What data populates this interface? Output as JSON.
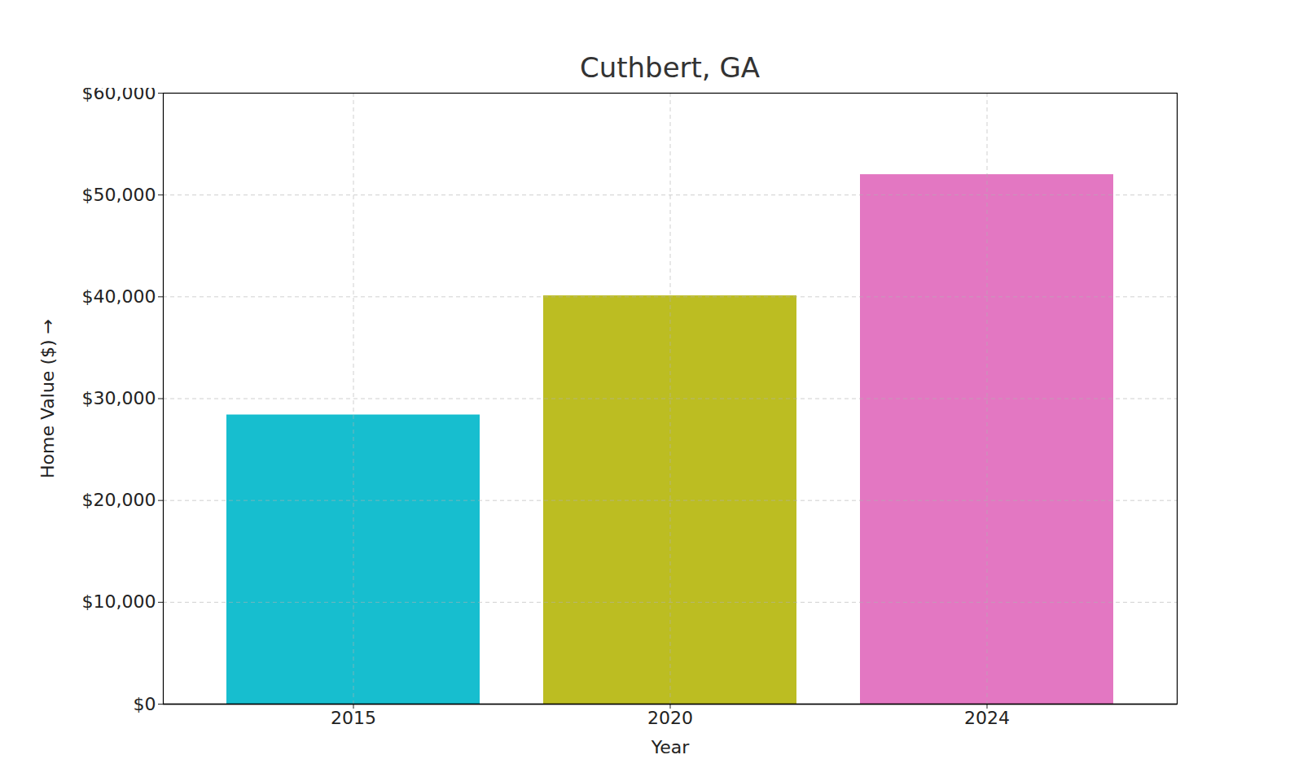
{
  "chart_data": {
    "type": "bar",
    "title": "Cuthbert, GA",
    "x_label": "Year",
    "y_label": "Home Value ($)",
    "categories": [
      "2015",
      "2020",
      "2024"
    ],
    "values": [
      28400,
      40100,
      52000
    ],
    "colors": [
      "#17becf",
      "#bcbd22",
      "#e377c2"
    ],
    "ylim": [
      0,
      60000
    ],
    "yticks": [
      {
        "value": 0,
        "label": "$0"
      },
      {
        "value": 10000,
        "label": "$10,000"
      },
      {
        "value": 20000,
        "label": "$20,000"
      },
      {
        "value": 30000,
        "label": "$30,000"
      },
      {
        "value": 40000,
        "label": "$40,000"
      },
      {
        "value": 50000,
        "label": "$50,000"
      },
      {
        "value": 60000,
        "label": "$60,000"
      }
    ],
    "grid": true
  }
}
